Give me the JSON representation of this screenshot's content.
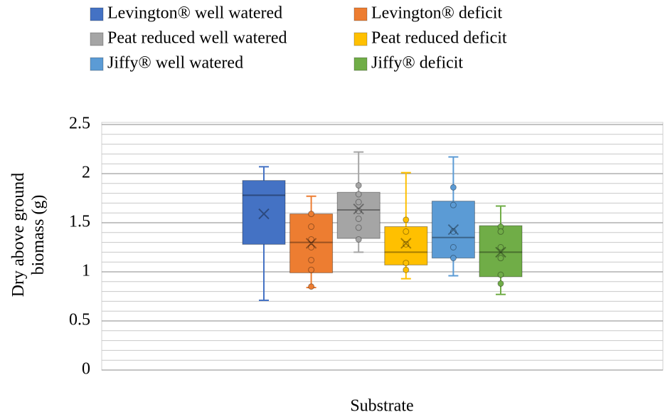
{
  "chart_data": {
    "type": "box",
    "x_label": "Substrate",
    "y_label": "Dry above ground biomass (g)",
    "categories": [
      null
    ],
    "ylim": [
      0,
      2.5
    ],
    "yticks": [
      0,
      0.5,
      1,
      1.5,
      2,
      2.5
    ],
    "minor_yticks": [
      0.1,
      0.2,
      0.3,
      0.4,
      0.6,
      0.7,
      0.8,
      0.9,
      1.1,
      1.2,
      1.3,
      1.4,
      1.6,
      1.7,
      1.8,
      1.9,
      2.1,
      2.2,
      2.3,
      2.4
    ],
    "grid": true,
    "legend": "top",
    "series": [
      {
        "name": "Levington® well watered",
        "color": "#4472c4",
        "min": 0.71,
        "q1": 1.28,
        "median": 1.78,
        "q3": 1.93,
        "max": 2.07,
        "mean": 1.59,
        "points": []
      },
      {
        "name": "Levington® deficit",
        "color": "#ed7d31",
        "min": 0.84,
        "q1": 0.99,
        "median": 1.3,
        "q3": 1.59,
        "max": 1.77,
        "mean": 1.29,
        "points": [
          1.59,
          1.46,
          1.33,
          1.25,
          1.12,
          1.02,
          0.85
        ]
      },
      {
        "name": "Peat reduced well watered",
        "color": "#a5a5a5",
        "min": 1.2,
        "q1": 1.34,
        "median": 1.63,
        "q3": 1.81,
        "max": 2.22,
        "mean": 1.64,
        "points": [
          1.88,
          1.79,
          1.71,
          1.62,
          1.54,
          1.45,
          1.33
        ]
      },
      {
        "name": "Peat reduced deficit",
        "color": "#ffc000",
        "min": 0.93,
        "q1": 1.07,
        "median": 1.2,
        "q3": 1.46,
        "max": 2.01,
        "mean": 1.29,
        "points": [
          1.53,
          1.41,
          1.28,
          1.09,
          1.02
        ]
      },
      {
        "name": "Jiffy® well watered",
        "color": "#5b9bd5",
        "min": 0.96,
        "q1": 1.14,
        "median": 1.35,
        "q3": 1.72,
        "max": 2.17,
        "mean": 1.43,
        "points": [
          1.86,
          1.68,
          1.41,
          1.25,
          1.14
        ]
      },
      {
        "name": "Jiffy® deficit",
        "color": "#70ad47",
        "min": 0.77,
        "q1": 0.95,
        "median": 1.2,
        "q3": 1.47,
        "max": 1.67,
        "mean": 1.2,
        "points": [
          1.46,
          1.41,
          1.25,
          1.14,
          0.97,
          0.88
        ]
      }
    ]
  }
}
